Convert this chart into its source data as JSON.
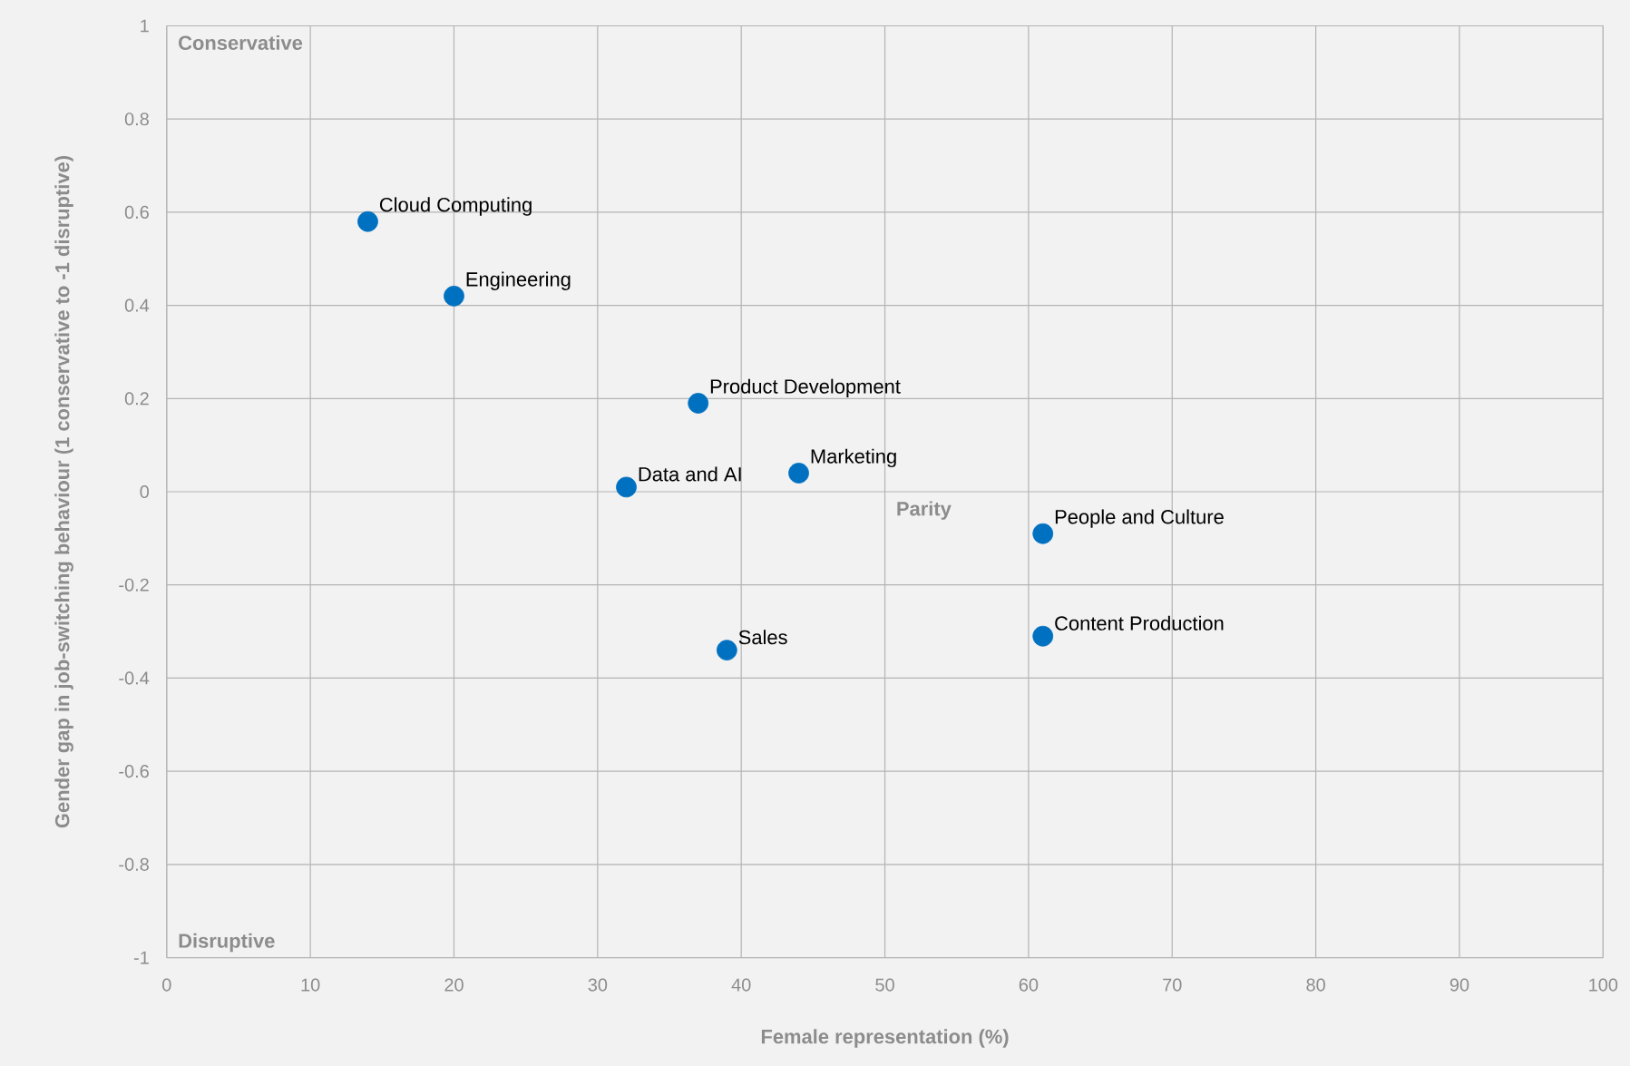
{
  "chart_data": {
    "type": "scatter",
    "xlabel": "Female representation (%)",
    "ylabel": "Gender gap in job-switching behaviour (1 conservative to -1 disruptive)",
    "xlim": [
      0,
      100
    ],
    "xticks": [
      0,
      10,
      20,
      30,
      40,
      50,
      60,
      70,
      80,
      90,
      100
    ],
    "ylim": [
      -1,
      1
    ],
    "yticks": [
      -1,
      -0.8,
      -0.6,
      -0.4,
      -0.2,
      0,
      0.2,
      0.4,
      0.6,
      0.8,
      1
    ],
    "grid": true,
    "marker": "circle",
    "annotations": [
      "Conservative",
      "Disruptive",
      "Parity",
      {
        "text": "Cloud Computing",
        "x": 14,
        "y": 0.58
      },
      {
        "text": "Engineering",
        "x": 20,
        "y": 0.42
      },
      {
        "text": "Product Development",
        "x": 37,
        "y": 0.19
      },
      {
        "text": "Data and AI",
        "x": 32,
        "y": 0.01
      },
      {
        "text": "Marketing",
        "x": 44,
        "y": 0.04
      },
      {
        "text": "People and Culture",
        "x": 61,
        "y": -0.09
      },
      {
        "text": "Content Production",
        "x": 61,
        "y": -0.31
      },
      {
        "text": "Sales",
        "x": 39,
        "y": -0.34
      }
    ],
    "series": [
      {
        "color": "#0070c0",
        "x": [
          14,
          20,
          37,
          32,
          44,
          61,
          61,
          39
        ],
        "values": [
          0.58,
          0.42,
          0.19,
          0.01,
          0.04,
          -0.09,
          -0.31,
          -0.34
        ]
      }
    ]
  }
}
